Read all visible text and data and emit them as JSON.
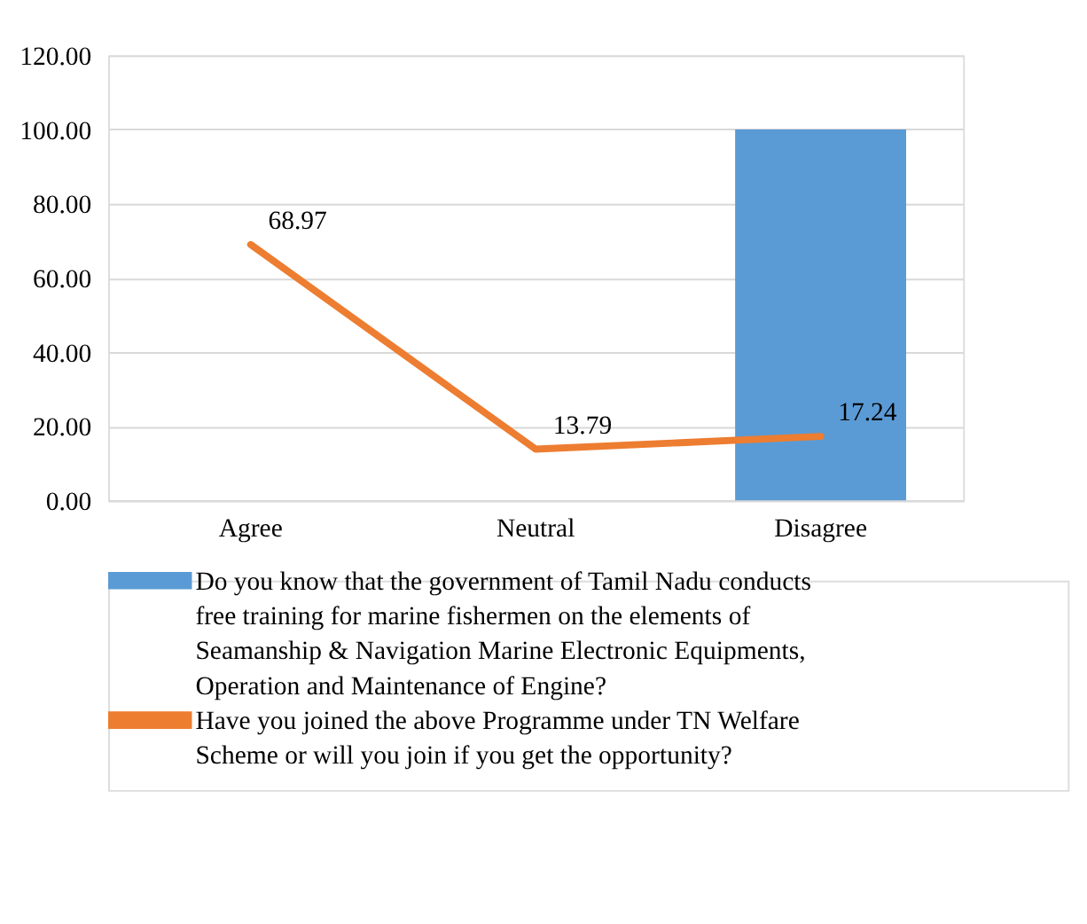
{
  "chart_data": {
    "type": "bar",
    "categories": [
      "Agree",
      "Neutral",
      "Disagree"
    ],
    "series": [
      {
        "name": "Do you know that the government of Tamil Nadu conducts free training for marine fishermen on the elements of Seamanship & Navigation Marine Electronic Equipments, Operation and Maintenance of Engine?",
        "color": "#5b9bd5",
        "values": [
          null,
          null,
          100
        ]
      },
      {
        "name": "Have you joined the above Programme under TN Welfare Scheme or will you join if you get the opportunity?",
        "type": "line",
        "color": "#ed7d31",
        "values": [
          68.97,
          13.79,
          17.24
        ],
        "value_labels": [
          "68.97",
          "13.79",
          "17.24"
        ]
      }
    ],
    "ylim": [
      0,
      120
    ],
    "yticks": [
      {
        "value": 0,
        "label": "0.00"
      },
      {
        "value": 20,
        "label": "20.00"
      },
      {
        "value": 40,
        "label": "40.00"
      },
      {
        "value": 60,
        "label": "60.00"
      },
      {
        "value": 80,
        "label": "80.00"
      },
      {
        "value": 100,
        "label": "100.00"
      },
      {
        "value": 120,
        "label": "120.00"
      }
    ],
    "grid": "y",
    "legend": "bottom",
    "marker": "none",
    "line_style": "solid"
  }
}
